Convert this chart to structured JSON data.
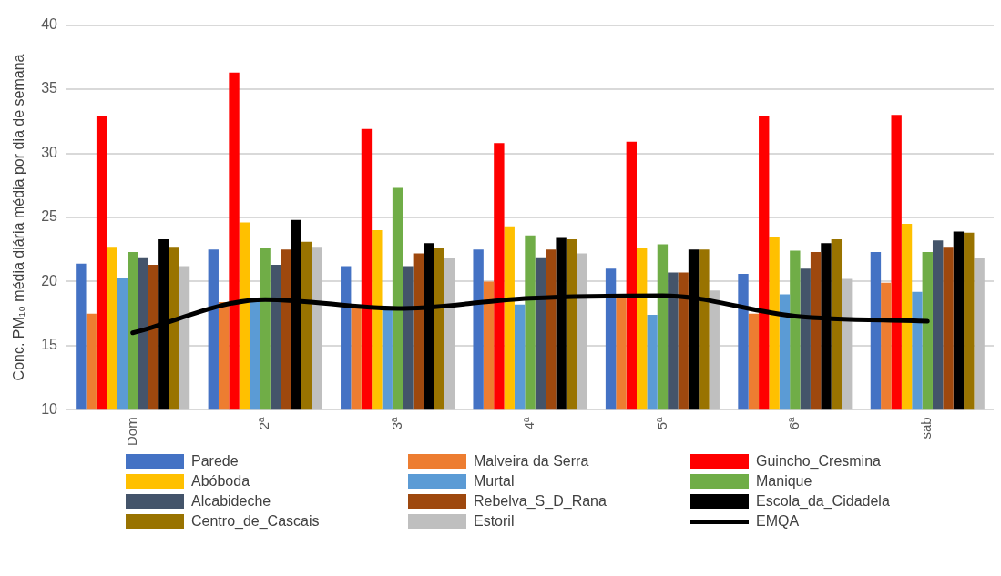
{
  "chart_data": {
    "type": "bar",
    "ylabel": "Conc. PM₁₀ média diária média por dia de semana",
    "categories": [
      "Dom",
      "2ª",
      "3ª",
      "4ª",
      "5ª",
      "6ª",
      "sab"
    ],
    "series": [
      {
        "name": "Parede",
        "color": "#4472c4",
        "values": [
          21.4,
          22.5,
          21.2,
          22.5,
          21.0,
          20.6,
          22.3
        ]
      },
      {
        "name": "Malveira da Serra",
        "color": "#ed7d31",
        "values": [
          17.5,
          18.4,
          18.0,
          20.0,
          18.8,
          17.5,
          19.9
        ]
      },
      {
        "name": "Guincho_Cresmina",
        "color": "#ff0000",
        "values": [
          32.9,
          36.3,
          31.9,
          30.8,
          30.9,
          32.9,
          33.0
        ]
      },
      {
        "name": "Abóboda",
        "color": "#ffc000",
        "values": [
          22.7,
          24.6,
          24.0,
          24.3,
          22.6,
          23.5,
          24.5
        ]
      },
      {
        "name": "Murtal",
        "color": "#5b9bd5",
        "values": [
          20.3,
          18.5,
          17.8,
          18.2,
          17.4,
          19.0,
          19.2
        ]
      },
      {
        "name": "Manique",
        "color": "#70ad47",
        "values": [
          22.3,
          22.6,
          27.3,
          23.6,
          22.9,
          22.4,
          22.3
        ]
      },
      {
        "name": "Alcabideche",
        "color": "#44546a",
        "values": [
          21.9,
          21.3,
          21.2,
          21.9,
          20.7,
          21.0,
          23.2
        ]
      },
      {
        "name": "Rebelva_S_D_Rana",
        "color": "#9e480e",
        "values": [
          21.3,
          22.5,
          22.2,
          22.5,
          20.7,
          22.3,
          22.7
        ]
      },
      {
        "name": "Escola_da_Cidadela",
        "color": "#000000",
        "values": [
          23.3,
          24.8,
          23.0,
          23.4,
          22.5,
          23.0,
          23.9
        ]
      },
      {
        "name": "Centro_de_Cascais",
        "color": "#997300",
        "values": [
          22.7,
          23.1,
          22.6,
          23.3,
          22.5,
          23.3,
          23.8
        ]
      },
      {
        "name": "Estoril",
        "color": "#bfbfbf",
        "values": [
          21.2,
          22.7,
          21.8,
          22.2,
          19.3,
          20.2,
          21.8
        ]
      },
      {
        "name": "EMQA",
        "type": "line",
        "color": "#000000",
        "marker": "none",
        "values": [
          16.0,
          18.6,
          17.9,
          18.7,
          18.9,
          17.3,
          16.9
        ]
      }
    ],
    "ylim": [
      10,
      40
    ],
    "yticks": [
      10,
      15,
      20,
      25,
      30,
      35,
      40
    ],
    "grid": "y",
    "legend": "bottom"
  }
}
